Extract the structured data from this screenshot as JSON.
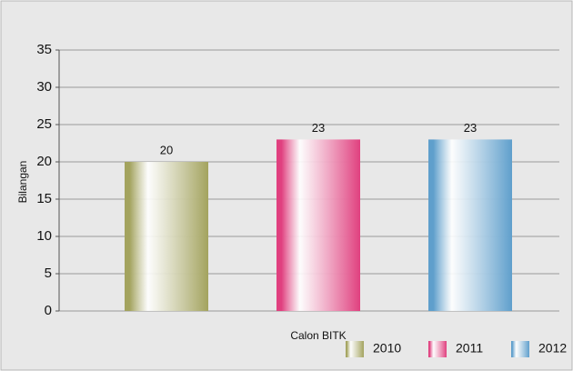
{
  "chart_data": {
    "type": "bar",
    "categories": [
      "Calon BITK"
    ],
    "y_label": "Bilangan",
    "series": [
      {
        "name": "2010",
        "color": "#a3a35e",
        "values": [
          20
        ]
      },
      {
        "name": "2011",
        "color": "#e0407f",
        "values": [
          23
        ]
      },
      {
        "name": "2012",
        "color": "#5f9fcc",
        "values": [
          23
        ]
      }
    ],
    "ylim": [
      0,
      35
    ],
    "yticks": [
      0,
      5,
      10,
      15,
      20,
      25,
      30,
      35
    ],
    "grid": true,
    "legend": "bottom-right"
  }
}
